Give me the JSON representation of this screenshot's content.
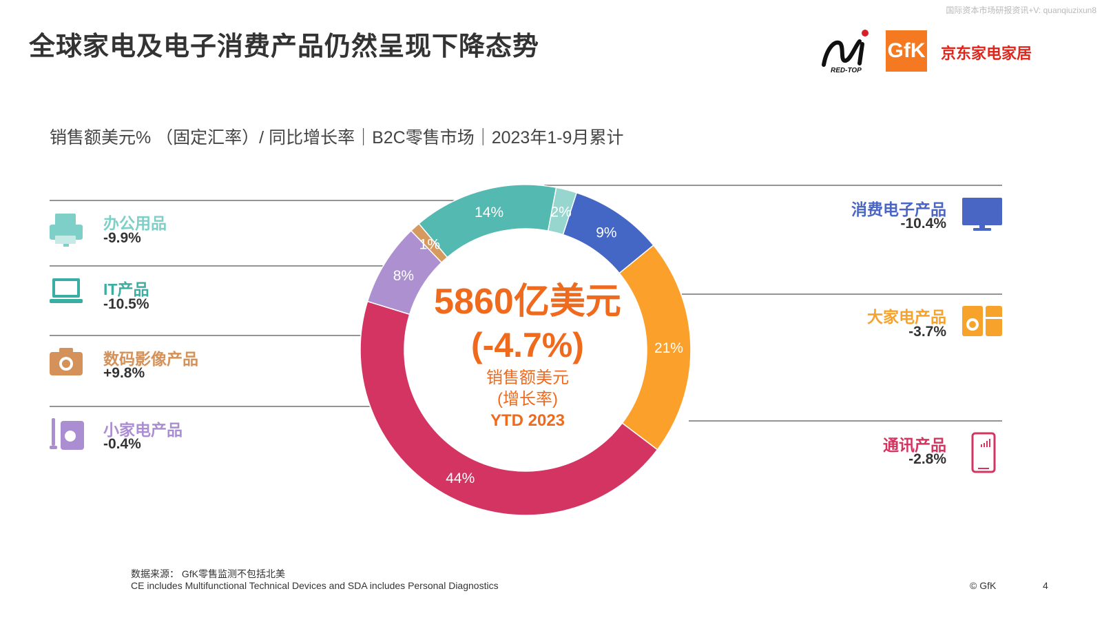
{
  "watermark": "国际资本市场研报资讯+V: quanqiuzixun8",
  "title": "全球家电及电子消费产品仍然呈现下降态势",
  "subtitle": "销售额美元% （固定汇率）/ 同比增长率｜B2C零售市场｜2023年1-9月累计",
  "logos": {
    "redtop": "RED-TOP",
    "gfk": "GfK",
    "jd": "京东家电家居"
  },
  "center": {
    "total": "5860亿美元",
    "growth": "(-4.7%)",
    "label1": "销售额美元",
    "label2": "(增长率)",
    "label3": "YTD 2023"
  },
  "categories": {
    "office": {
      "name": "办公用品",
      "growth": "-9.9%",
      "icon": "printer-icon",
      "color": "#7ecfc7"
    },
    "it": {
      "name": "IT产品",
      "growth": "-10.5%",
      "icon": "laptop-icon",
      "color": "#3aaea3"
    },
    "photo": {
      "name": "数码影像产品",
      "growth": "+9.8%",
      "icon": "camera-icon",
      "color": "#d4915a"
    },
    "sda": {
      "name": "小家电产品",
      "growth": "-0.4%",
      "icon": "small-appliance-icon",
      "color": "#ab8ed1"
    },
    "ce": {
      "name": "消费电子产品",
      "growth": "-10.4%",
      "icon": "tv-icon",
      "color": "#4a66c5"
    },
    "mda": {
      "name": "大家电产品",
      "growth": "-3.7%",
      "icon": "washing-machine-icon",
      "color": "#f7a22b"
    },
    "telecom": {
      "name": "通讯产品",
      "growth": "-2.8%",
      "icon": "smartphone-icon",
      "color": "#d43560"
    }
  },
  "chart_data": {
    "type": "pie",
    "style": "donut",
    "unit": "%",
    "slices": [
      {
        "label": "消费电子产品",
        "value": 9,
        "display": "9%",
        "color": "#4466c4"
      },
      {
        "label": "大家电产品",
        "value": 21,
        "display": "21%",
        "color": "#fba12b"
      },
      {
        "label": "通讯产品",
        "value": 44,
        "display": "44%",
        "color": "#d33462"
      },
      {
        "label": "小家电产品",
        "value": 8,
        "display": "8%",
        "color": "#ac90d0"
      },
      {
        "label": "数码影像产品",
        "value": 1,
        "display": "1%",
        "color": "#d69a5f"
      },
      {
        "label": "IT产品",
        "value": 14,
        "display": "14%",
        "color": "#54b9b1"
      },
      {
        "label": "办公用品",
        "value": 2,
        "display": "2%",
        "color": "#96d6cf"
      }
    ]
  },
  "footer": {
    "source": "数据来源： GfK零售监测不包括北美",
    "note": "CE includes Multifunctional Technical Devices and SDA includes Personal Diagnostics",
    "copyright": "© GfK",
    "page": "4"
  }
}
